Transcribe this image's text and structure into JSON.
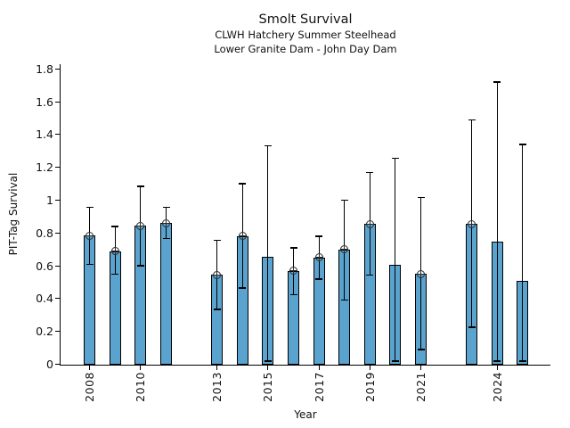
{
  "chart_data": {
    "type": "bar",
    "title": "Smolt Survival",
    "subtitle1": "CLWH Hatchery Summer Steelhead",
    "subtitle2": "Lower Granite Dam - John Day Dam",
    "xlabel": "Year",
    "ylabel": "PIT-Tag Survival",
    "ylim": [
      0,
      1.8
    ],
    "grid": false,
    "bar_color": "#5BA3CF",
    "bar_edge_color": "#000000",
    "errorbar_color": "#000000",
    "marker_style": "circle-plus",
    "yticks": [
      {
        "v": 0,
        "label": "0"
      },
      {
        "v": 0.2,
        "label": "0.2"
      },
      {
        "v": 0.4,
        "label": "0.4"
      },
      {
        "v": 0.6,
        "label": "0.6"
      },
      {
        "v": 0.8,
        "label": "0.8"
      },
      {
        "v": 1.0,
        "label": "1"
      },
      {
        "v": 1.2,
        "label": "1.2"
      },
      {
        "v": 1.4,
        "label": "1.4"
      },
      {
        "v": 1.6,
        "label": "1.6"
      },
      {
        "v": 1.8,
        "label": "1.8"
      }
    ],
    "xticks": [
      {
        "year": 2008,
        "label": "2008"
      },
      {
        "year": 2010,
        "label": "2010"
      },
      {
        "year": 2013,
        "label": "2013"
      },
      {
        "year": 2015,
        "label": "2015"
      },
      {
        "year": 2017,
        "label": "2017"
      },
      {
        "year": 2019,
        "label": "2019"
      },
      {
        "year": 2021,
        "label": "2021"
      },
      {
        "year": 2024,
        "label": "2024"
      }
    ],
    "series": [
      {
        "year": 2008,
        "value": 0.785,
        "ci_low": 0.61,
        "ci_high": 0.955,
        "marker": true
      },
      {
        "year": 2009,
        "value": 0.69,
        "ci_low": 0.55,
        "ci_high": 0.84,
        "marker": true
      },
      {
        "year": 2010,
        "value": 0.845,
        "ci_low": 0.6,
        "ci_high": 1.085,
        "marker": true
      },
      {
        "year": 2011,
        "value": 0.86,
        "ci_low": 0.765,
        "ci_high": 0.955,
        "marker": true
      },
      {
        "year": 2013,
        "value": 0.545,
        "ci_low": 0.335,
        "ci_high": 0.755,
        "marker": true
      },
      {
        "year": 2014,
        "value": 0.78,
        "ci_low": 0.465,
        "ci_high": 1.1,
        "marker": true
      },
      {
        "year": 2015,
        "value": 0.655,
        "ci_low": 0.02,
        "ci_high": 1.33,
        "marker": false
      },
      {
        "year": 2016,
        "value": 0.57,
        "ci_low": 0.425,
        "ci_high": 0.71,
        "marker": true
      },
      {
        "year": 2017,
        "value": 0.65,
        "ci_low": 0.52,
        "ci_high": 0.78,
        "marker": true
      },
      {
        "year": 2018,
        "value": 0.7,
        "ci_low": 0.39,
        "ci_high": 1.0,
        "marker": true
      },
      {
        "year": 2019,
        "value": 0.855,
        "ci_low": 0.545,
        "ci_high": 1.17,
        "marker": true
      },
      {
        "year": 2020,
        "value": 0.605,
        "ci_low": 0.02,
        "ci_high": 1.255,
        "marker": false
      },
      {
        "year": 2021,
        "value": 0.55,
        "ci_low": 0.09,
        "ci_high": 1.015,
        "marker": true
      },
      {
        "year": 2023,
        "value": 0.855,
        "ci_low": 0.225,
        "ci_high": 1.49,
        "marker": true
      },
      {
        "year": 2024,
        "value": 0.745,
        "ci_low": 0.02,
        "ci_high": 1.72,
        "marker": false
      },
      {
        "year": 2025,
        "value": 0.51,
        "ci_low": 0.02,
        "ci_high": 1.34,
        "marker": false
      }
    ]
  }
}
